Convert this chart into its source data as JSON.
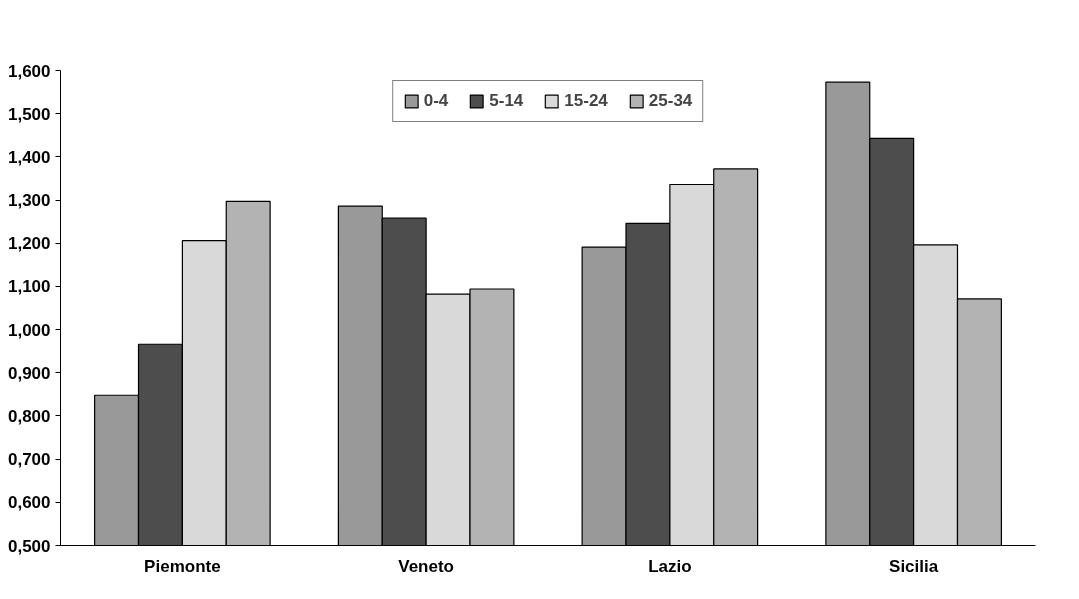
{
  "chart_data": {
    "type": "bar",
    "categories": [
      "Piemonte",
      "Veneto",
      "Lazio",
      "Sicilia"
    ],
    "series": [
      {
        "name": "0-4",
        "color": "#999999",
        "values": [
          0.848,
          1.286,
          1.191,
          1.573
        ]
      },
      {
        "name": "5-14",
        "color": "#4d4d4d",
        "values": [
          0.966,
          1.258,
          1.246,
          1.443
        ]
      },
      {
        "name": "15-24",
        "color": "#d9d9d9",
        "values": [
          1.206,
          1.082,
          1.336,
          1.196
        ]
      },
      {
        "name": "25-34",
        "color": "#b3b3b3",
        "values": [
          1.297,
          1.094,
          1.372,
          1.071
        ]
      }
    ],
    "ylim": [
      0.5,
      1.6
    ],
    "yticks": [
      {
        "value": 0.5,
        "label": "0,500"
      },
      {
        "value": 0.6,
        "label": "0,600"
      },
      {
        "value": 0.7,
        "label": "0,700"
      },
      {
        "value": 0.8,
        "label": "0,800"
      },
      {
        "value": 0.9,
        "label": "0,900"
      },
      {
        "value": 1.0,
        "label": "1,000"
      },
      {
        "value": 1.1,
        "label": "1,100"
      },
      {
        "value": 1.2,
        "label": "1,200"
      },
      {
        "value": 1.3,
        "label": "1,300"
      },
      {
        "value": 1.4,
        "label": "1,400"
      },
      {
        "value": 1.5,
        "label": "1,500"
      },
      {
        "value": 1.6,
        "label": "1,600"
      }
    ],
    "grid": false,
    "legend": "top"
  }
}
